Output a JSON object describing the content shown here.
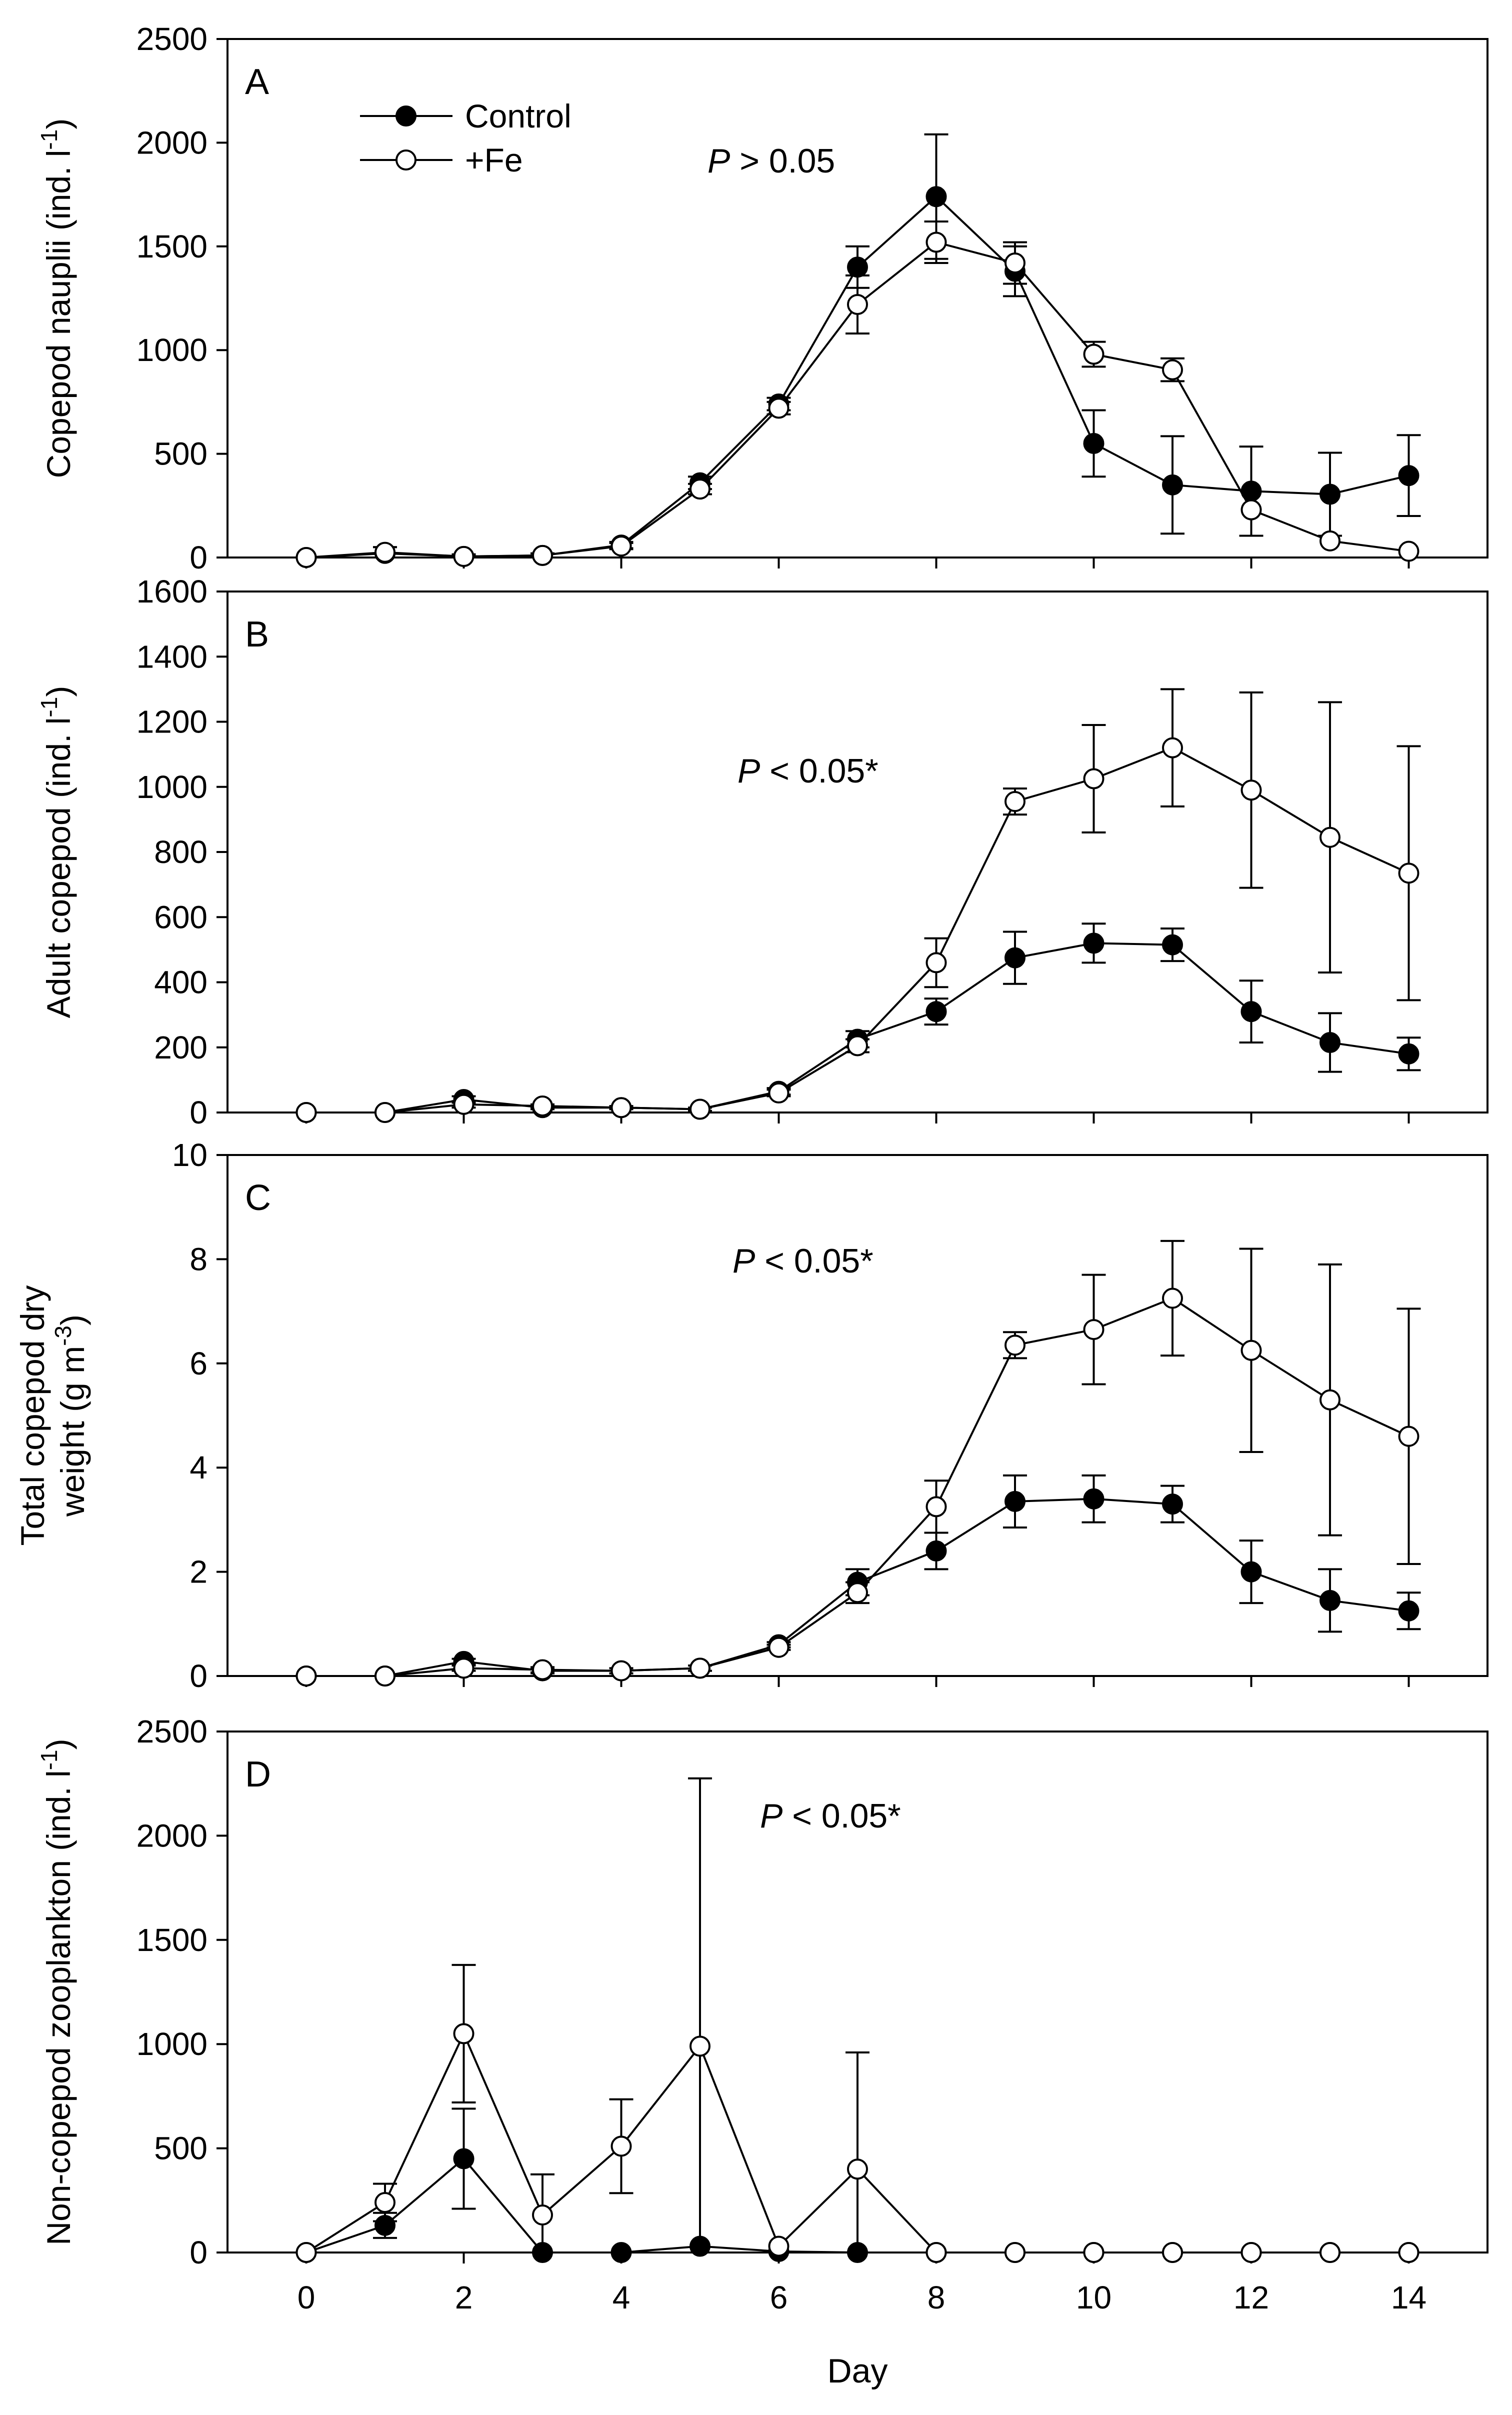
{
  "figure": {
    "xlabel": "Day",
    "x_ticks": [
      "0",
      "2",
      "4",
      "6",
      "8",
      "10",
      "12",
      "14"
    ],
    "legend": {
      "control": "Control",
      "fe": "+Fe"
    },
    "colors": {
      "control_fill": "#000000",
      "fe_fill": "#ffffff",
      "line": "#000000"
    }
  },
  "chart_data": [
    {
      "type": "line",
      "panel": "A",
      "stat": "P > 0.05",
      "stat_p": "P",
      "stat_rest": " > 0.05",
      "ylabel": "Copepod nauplii (ind. l-1)",
      "ylabel_main": "Copepod nauplii (ind. l",
      "ylabel_sup": "-1",
      "ylabel_close": ")",
      "ylim": [
        0,
        2500
      ],
      "y_ticks": [
        "0",
        "500",
        "1000",
        "1500",
        "2000",
        "2500"
      ],
      "xlim": [
        -1,
        15
      ],
      "x": [
        0,
        1,
        2,
        3,
        4,
        5,
        6,
        7,
        8,
        9,
        10,
        11,
        12,
        13,
        14
      ],
      "series": [
        {
          "name": "Control",
          "marker": "filled",
          "values": [
            0,
            20,
            5,
            10,
            60,
            360,
            740,
            1400,
            1740,
            1380,
            550,
            350,
            320,
            305,
            395
          ],
          "err": [
            0,
            30,
            10,
            10,
            15,
            30,
            30,
            100,
            300,
            120,
            160,
            235,
            215,
            200,
            195
          ]
        },
        {
          "name": "+Fe",
          "marker": "open",
          "values": [
            0,
            25,
            5,
            10,
            55,
            330,
            720,
            1220,
            1520,
            1420,
            980,
            905,
            230,
            80,
            30
          ],
          "err": [
            0,
            25,
            10,
            10,
            15,
            25,
            30,
            140,
            100,
            100,
            60,
            55,
            0,
            0,
            0
          ]
        }
      ]
    },
    {
      "type": "line",
      "panel": "B",
      "stat": "P < 0.05*",
      "stat_p": "P",
      "stat_rest": " < 0.05*",
      "ylabel": "Adult copepod (ind. l-1)",
      "ylabel_main": "Adult copepod (ind. l",
      "ylabel_sup": "-1",
      "ylabel_close": ")",
      "ylim": [
        0,
        1600
      ],
      "y_ticks": [
        "0",
        "200",
        "400",
        "600",
        "800",
        "1000",
        "1200",
        "1400",
        "1600"
      ],
      "xlim": [
        -1,
        15
      ],
      "x": [
        0,
        1,
        2,
        3,
        4,
        5,
        6,
        7,
        8,
        9,
        10,
        11,
        12,
        13,
        14
      ],
      "series": [
        {
          "name": "Control",
          "marker": "filled",
          "values": [
            0,
            0,
            40,
            15,
            15,
            10,
            65,
            225,
            310,
            475,
            520,
            515,
            310,
            215,
            180
          ],
          "err": [
            0,
            0,
            10,
            5,
            5,
            5,
            10,
            25,
            40,
            80,
            60,
            50,
            95,
            90,
            50
          ]
        },
        {
          "name": "+Fe",
          "marker": "open",
          "values": [
            0,
            0,
            25,
            20,
            15,
            10,
            60,
            205,
            460,
            955,
            1025,
            1120,
            990,
            845,
            735
          ],
          "err": [
            0,
            0,
            10,
            5,
            5,
            5,
            10,
            20,
            75,
            40,
            165,
            180,
            300,
            415,
            390
          ]
        }
      ]
    },
    {
      "type": "line",
      "panel": "C",
      "stat": "P < 0.05*",
      "stat_p": "P",
      "stat_rest": " < 0.05*",
      "ylabel": "Total copepod dry weight (g m-3)",
      "ylabel_line1": "Total copepod dry",
      "ylabel_main": "weight (g m",
      "ylabel_sup": "-3",
      "ylabel_close": ")",
      "ylim": [
        0,
        10
      ],
      "y_ticks": [
        "0",
        "2",
        "4",
        "6",
        "8",
        "10"
      ],
      "xlim": [
        -1,
        15
      ],
      "x": [
        0,
        1,
        2,
        3,
        4,
        5,
        6,
        7,
        8,
        9,
        10,
        11,
        12,
        13,
        14
      ],
      "series": [
        {
          "name": "Control",
          "marker": "filled",
          "values": [
            0,
            0,
            0.28,
            0.1,
            0.1,
            0.15,
            0.6,
            1.8,
            2.4,
            3.35,
            3.4,
            3.3,
            2.0,
            1.45,
            1.25
          ],
          "err": [
            0,
            0,
            0.05,
            0.05,
            0.05,
            0.05,
            0.05,
            0.25,
            0.35,
            0.5,
            0.45,
            0.35,
            0.6,
            0.6,
            0.35
          ]
        },
        {
          "name": "+Fe",
          "marker": "open",
          "values": [
            0,
            0,
            0.15,
            0.12,
            0.1,
            0.15,
            0.55,
            1.6,
            3.25,
            6.35,
            6.65,
            7.25,
            6.25,
            5.3,
            4.6
          ],
          "err": [
            0,
            0,
            0.05,
            0.05,
            0.05,
            0.05,
            0.05,
            0.2,
            0.5,
            0.25,
            1.05,
            1.1,
            1.95,
            2.6,
            2.45
          ]
        }
      ]
    },
    {
      "type": "line",
      "panel": "D",
      "stat": "P < 0.05*",
      "stat_p": "P",
      "stat_rest": " < 0.05*",
      "ylabel": "Non-copepod zooplankton (ind. l-1)",
      "ylabel_main": "Non-copepod zooplankton (ind. l",
      "ylabel_sup": "-1",
      "ylabel_close": ")",
      "ylim": [
        0,
        2500
      ],
      "y_ticks": [
        "0",
        "500",
        "1000",
        "1500",
        "2000",
        "2500"
      ],
      "xlim": [
        -1,
        15
      ],
      "x": [
        0,
        1,
        2,
        3,
        4,
        5,
        6,
        7,
        8,
        9,
        10,
        11,
        12,
        13,
        14
      ],
      "series": [
        {
          "name": "Control",
          "marker": "filled",
          "values": [
            0,
            130,
            450,
            0,
            0,
            30,
            5,
            0,
            0,
            0,
            0,
            0,
            0,
            0,
            0
          ],
          "err": [
            0,
            60,
            240,
            0,
            0,
            0,
            0,
            0,
            0,
            0,
            0,
            0,
            0,
            0,
            0
          ]
        },
        {
          "name": "+Fe",
          "marker": "open",
          "values": [
            0,
            240,
            1050,
            180,
            510,
            990,
            30,
            400,
            0,
            0,
            0,
            0,
            0,
            0,
            0
          ],
          "err": [
            0,
            90,
            330,
            195,
            225,
            1285,
            0,
            560,
            0,
            0,
            0,
            0,
            0,
            0,
            0
          ]
        }
      ]
    }
  ]
}
